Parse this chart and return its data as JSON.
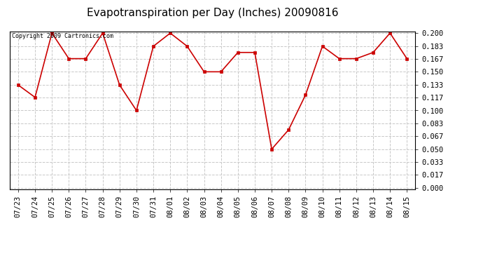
{
  "title": "Evapotranspiration per Day (Inches) 20090816",
  "copyright_text": "Copyright 2009 Cartronics.com",
  "x_labels": [
    "07/23",
    "07/24",
    "07/25",
    "07/26",
    "07/27",
    "07/28",
    "07/29",
    "07/30",
    "07/31",
    "08/01",
    "08/02",
    "08/03",
    "08/04",
    "08/05",
    "08/06",
    "08/07",
    "08/08",
    "08/09",
    "08/10",
    "08/11",
    "08/12",
    "08/13",
    "08/14",
    "08/15"
  ],
  "y_values": [
    0.133,
    0.117,
    0.2,
    0.167,
    0.167,
    0.2,
    0.133,
    0.1,
    0.183,
    0.2,
    0.183,
    0.15,
    0.15,
    0.175,
    0.175,
    0.05,
    0.075,
    0.12,
    0.183,
    0.167,
    0.167,
    0.175,
    0.2,
    0.167
  ],
  "y_ticks": [
    0.0,
    0.017,
    0.033,
    0.05,
    0.067,
    0.083,
    0.1,
    0.117,
    0.133,
    0.15,
    0.167,
    0.183,
    0.2
  ],
  "line_color": "#cc0000",
  "marker": "s",
  "marker_size": 3,
  "marker_color": "#cc0000",
  "grid_color": "#c8c8c8",
  "grid_style": "--",
  "background_color": "#ffffff",
  "title_fontsize": 11,
  "tick_fontsize": 7.5,
  "copyright_fontsize": 6,
  "ylim": [
    0.0,
    0.2
  ]
}
